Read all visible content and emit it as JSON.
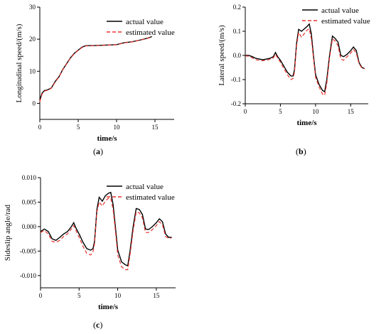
{
  "chart_data": [
    {
      "type": "line",
      "panel_label": "(a)",
      "panel_letter": "a",
      "xlabel": "time/s",
      "ylabel": "Longitudinal speed/(m/s)",
      "xlim": [
        0,
        17.5
      ],
      "ylim": [
        -5,
        30
      ],
      "xticks": [
        0,
        5,
        10,
        15
      ],
      "yticks": [
        0,
        10,
        20,
        30
      ],
      "legend_position": "top-right",
      "series": [
        {
          "name": "actual value",
          "color": "#000000",
          "style": "solid",
          "x": [
            0,
            0.3,
            0.6,
            1.0,
            1.5,
            2.0,
            2.5,
            3.0,
            3.5,
            4.0,
            4.5,
            5.0,
            5.5,
            6.0,
            7.0,
            8.0,
            9.0,
            10.0,
            11.0,
            12.0,
            13.0,
            14.0,
            14.6
          ],
          "y": [
            1.0,
            3.2,
            4.0,
            4.2,
            4.8,
            6.8,
            8.3,
            10.6,
            12.4,
            14.2,
            15.6,
            16.6,
            17.5,
            18.0,
            18.0,
            18.1,
            18.2,
            18.3,
            18.9,
            19.2,
            19.7,
            20.3,
            20.8
          ]
        },
        {
          "name": "estimated value",
          "color": "#e8322d",
          "style": "dashed",
          "x": [
            0,
            0.3,
            0.6,
            1.0,
            1.5,
            2.0,
            2.5,
            3.0,
            3.5,
            4.0,
            4.5,
            5.0,
            5.5,
            6.0,
            7.0,
            8.0,
            9.0,
            10.0,
            11.0,
            12.0,
            13.0,
            14.0,
            14.6
          ],
          "y": [
            0.5,
            2.9,
            3.8,
            4.1,
            4.7,
            6.6,
            8.2,
            10.5,
            12.3,
            14.1,
            15.5,
            16.5,
            17.4,
            17.9,
            17.95,
            18.05,
            18.15,
            18.25,
            18.85,
            19.15,
            19.65,
            20.25,
            20.7
          ]
        }
      ]
    },
    {
      "type": "line",
      "panel_label": "(b)",
      "panel_letter": "b",
      "xlabel": "time/s",
      "ylabel": "Lateral speed/(m/s)",
      "xlim": [
        0,
        17.5
      ],
      "ylim": [
        -0.2,
        0.2
      ],
      "xticks": [
        0,
        5,
        10,
        15
      ],
      "yticks": [
        -0.2,
        -0.1,
        0.0,
        0.1,
        0.2
      ],
      "ytick_labels": [
        "-0.2",
        "-0.1",
        "0.0",
        "0.1",
        "0.2"
      ],
      "legend_position": "top-right",
      "series": [
        {
          "name": "actual value",
          "color": "#000000",
          "style": "solid",
          "x": [
            0,
            0.5,
            1.0,
            1.5,
            2.0,
            2.5,
            3.0,
            3.5,
            4.0,
            4.3,
            4.6,
            5.0,
            5.5,
            6.0,
            6.5,
            6.8,
            7.0,
            7.3,
            7.6,
            8.0,
            8.4,
            8.8,
            9.1,
            9.4,
            9.7,
            10.0,
            10.5,
            11.0,
            11.3,
            11.6,
            12.0,
            12.4,
            12.8,
            13.2,
            13.6,
            14.0,
            14.5,
            15.0,
            15.4,
            15.8,
            16.2,
            16.6,
            17.0
          ],
          "y": [
            0.0,
            0.0,
            -0.005,
            -0.012,
            -0.015,
            -0.018,
            -0.015,
            -0.012,
            -0.005,
            0.012,
            -0.005,
            -0.02,
            -0.045,
            -0.07,
            -0.085,
            -0.085,
            -0.06,
            0.05,
            0.108,
            0.1,
            0.11,
            0.12,
            0.13,
            0.09,
            0.0,
            -0.08,
            -0.12,
            -0.145,
            -0.15,
            -0.1,
            0.0,
            0.08,
            0.07,
            0.055,
            0.0,
            -0.005,
            0.005,
            0.02,
            0.035,
            0.02,
            -0.03,
            -0.05,
            -0.055
          ]
        },
        {
          "name": "estimated value",
          "color": "#e8322d",
          "style": "dashed",
          "x": [
            0,
            0.5,
            1.0,
            1.5,
            2.0,
            2.5,
            3.0,
            3.5,
            4.0,
            4.3,
            4.6,
            5.0,
            5.5,
            6.0,
            6.5,
            6.8,
            7.0,
            7.3,
            7.6,
            8.0,
            8.4,
            8.8,
            9.1,
            9.4,
            9.7,
            10.0,
            10.5,
            11.0,
            11.3,
            11.6,
            12.0,
            12.4,
            12.8,
            13.2,
            13.6,
            14.0,
            14.5,
            15.0,
            15.4,
            15.8,
            16.2,
            16.6,
            17.0
          ],
          "y": [
            -0.002,
            -0.003,
            -0.01,
            -0.018,
            -0.02,
            -0.022,
            -0.02,
            -0.016,
            -0.01,
            0.004,
            -0.01,
            -0.028,
            -0.055,
            -0.08,
            -0.1,
            -0.095,
            -0.07,
            0.04,
            0.095,
            0.075,
            0.09,
            0.105,
            0.11,
            0.07,
            -0.01,
            -0.09,
            -0.13,
            -0.16,
            -0.165,
            -0.115,
            -0.01,
            0.068,
            0.06,
            0.04,
            -0.015,
            -0.02,
            -0.005,
            0.01,
            0.025,
            0.01,
            -0.035,
            -0.052,
            -0.055
          ]
        }
      ]
    },
    {
      "type": "line",
      "panel_label": "(c)",
      "panel_letter": "c",
      "xlabel": "time/s",
      "ylabel": "Sideslip angle/rad",
      "xlim": [
        0,
        17.5
      ],
      "ylim": [
        -0.0125,
        0.01
      ],
      "xticks": [
        0,
        5,
        10,
        15
      ],
      "yticks": [
        -0.01,
        -0.005,
        0.0,
        0.005,
        0.01
      ],
      "ytick_labels": [
        "-0.010",
        "-0.005",
        "0.000",
        "0.005",
        "0.010"
      ],
      "legend_position": "top-right",
      "series": [
        {
          "name": "actual value",
          "color": "#000000",
          "style": "solid",
          "x": [
            0,
            0.5,
            1.0,
            1.5,
            2.0,
            2.5,
            3.0,
            3.5,
            4.0,
            4.3,
            4.6,
            5.0,
            5.5,
            6.0,
            6.5,
            6.8,
            7.0,
            7.3,
            7.6,
            8.0,
            8.4,
            8.8,
            9.1,
            9.4,
            9.7,
            10.0,
            10.5,
            11.0,
            11.3,
            11.6,
            12.0,
            12.4,
            12.8,
            13.2,
            13.6,
            14.0,
            14.5,
            15.0,
            15.4,
            15.8,
            16.2,
            16.6,
            17.0
          ],
          "y": [
            -0.001,
            -0.0005,
            -0.001,
            -0.0025,
            -0.0028,
            -0.0022,
            -0.0015,
            -0.001,
            0.0,
            0.0008,
            -0.0003,
            -0.0015,
            -0.0032,
            -0.0045,
            -0.0048,
            -0.0045,
            -0.003,
            0.0035,
            0.006,
            0.0052,
            0.0063,
            0.0068,
            0.007,
            0.0045,
            0.0,
            -0.0048,
            -0.0072,
            -0.0078,
            -0.008,
            -0.005,
            0.0,
            0.0037,
            0.0035,
            0.0025,
            -0.0005,
            -0.0006,
            0.0,
            0.0008,
            0.0016,
            0.001,
            -0.0015,
            -0.0022,
            -0.0022
          ]
        },
        {
          "name": "estimated value",
          "color": "#e8322d",
          "style": "dashed",
          "x": [
            0,
            0.5,
            1.0,
            1.5,
            2.0,
            2.5,
            3.0,
            3.5,
            4.0,
            4.3,
            4.6,
            5.0,
            5.5,
            6.0,
            6.5,
            6.8,
            7.0,
            7.3,
            7.6,
            8.0,
            8.4,
            8.8,
            9.1,
            9.4,
            9.7,
            10.0,
            10.5,
            11.0,
            11.3,
            11.6,
            12.0,
            12.4,
            12.8,
            13.2,
            13.6,
            14.0,
            14.5,
            15.0,
            15.4,
            15.8,
            16.2,
            16.6,
            17.0
          ],
          "y": [
            -0.0012,
            -0.0008,
            -0.0015,
            -0.003,
            -0.0032,
            -0.0028,
            -0.002,
            -0.0015,
            -0.0005,
            0.0002,
            -0.0008,
            -0.0022,
            -0.004,
            -0.0055,
            -0.0058,
            -0.0052,
            -0.0035,
            0.003,
            0.005,
            0.0042,
            0.0052,
            0.0058,
            0.0058,
            0.0035,
            -0.0008,
            -0.0058,
            -0.0082,
            -0.0088,
            -0.0088,
            -0.0058,
            -0.0008,
            0.003,
            0.0028,
            0.0018,
            -0.0012,
            -0.0012,
            -0.0006,
            0.0002,
            0.001,
            0.0004,
            -0.002,
            -0.0024,
            -0.0023
          ]
        }
      ]
    }
  ]
}
